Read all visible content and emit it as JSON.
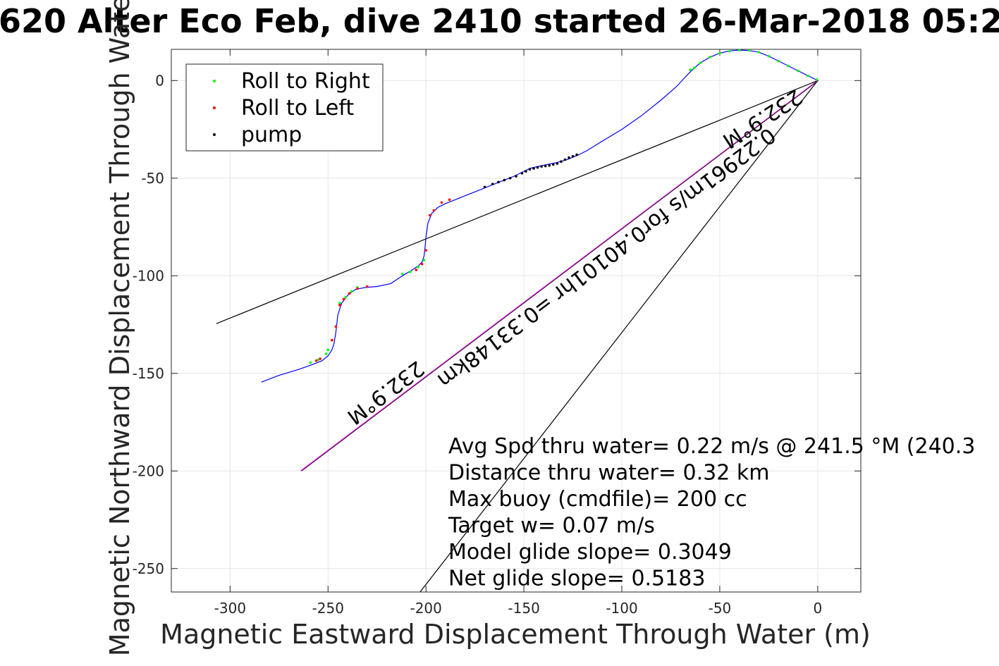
{
  "chart_data": {
    "type": "line",
    "title": "620 Alter Eco Feb, dive 2410 started 26-Mar-2018 05:2",
    "xlabel": "Magnetic Eastward Displacement Through Water (m)",
    "ylabel": "Magnetic Northward Displacement Through Wate(",
    "xlim": [
      -330,
      22
    ],
    "ylim": [
      -262,
      16
    ],
    "xticks": [
      -300,
      -250,
      -200,
      -150,
      -100,
      -50,
      0
    ],
    "yticks": [
      -250,
      -200,
      -150,
      -100,
      -50,
      0
    ],
    "x_tick_labels": [
      "-300",
      "-250",
      "-200",
      "-150",
      "-100",
      "-50",
      "0"
    ],
    "y_tick_labels": [
      "-250",
      "-200",
      "-150",
      "-100",
      "-50",
      "0"
    ],
    "grid": true,
    "legend_position": "top-left",
    "legend": [
      {
        "label": "Roll to Right",
        "color": "#00ff00"
      },
      {
        "label": "Roll to Left",
        "color": "#ff0000"
      },
      {
        "label": "pump",
        "color": "#000000"
      }
    ],
    "colors": {
      "track": "#0000ff",
      "magenta_line": "#ff00ff",
      "black_lines": "#000000",
      "grid": "#e6e6e6"
    },
    "track": {
      "x": [
        -284,
        -275,
        -265,
        -258,
        -253,
        -250,
        -248,
        -247,
        -246,
        -245,
        -243,
        -240,
        -236,
        -231,
        -225,
        -218,
        -212,
        -207,
        -204,
        -202,
        -201,
        -200.5,
        -200,
        -199,
        -197,
        -194,
        -190,
        -185,
        -180,
        -175,
        -170,
        -165,
        -160,
        -155,
        -150,
        -147,
        -143,
        -138,
        -133,
        -128,
        -122,
        -118,
        -110,
        -100,
        -90,
        -80,
        -72,
        -67,
        -64,
        -60,
        -55,
        -50,
        -45,
        -40,
        -35,
        -30,
        -25,
        -20,
        -15,
        -10,
        -5,
        0
      ],
      "y": [
        -154.5,
        -151,
        -148,
        -145.5,
        -143.5,
        -141,
        -138,
        -135,
        -129,
        -120,
        -114,
        -110,
        -107,
        -106,
        -105.5,
        -104,
        -100,
        -97,
        -95,
        -93,
        -90,
        -86,
        -80,
        -73,
        -68,
        -65,
        -63,
        -61,
        -59,
        -57,
        -55,
        -53,
        -51,
        -49,
        -46.5,
        -45,
        -44,
        -43,
        -42,
        -40.5,
        -38,
        -36,
        -31,
        -25,
        -18,
        -10,
        -3,
        2.5,
        5.5,
        9,
        12,
        14,
        15.2,
        15.6,
        15.4,
        14.5,
        12.5,
        10,
        7.5,
        5,
        2.5,
        0
      ]
    },
    "roll_right_points": {
      "x": [
        -259,
        -255,
        -251,
        -250,
        -248,
        -212,
        -208,
        -204,
        -201,
        -0.5,
        -5,
        -10,
        -15,
        -20,
        -25,
        -30,
        -35,
        -40,
        -45,
        -50,
        -55,
        -60,
        -63,
        -65,
        -235,
        -238,
        -241,
        -244
      ],
      "y": [
        -144.5,
        -143,
        -140,
        -138,
        -133,
        -99,
        -98,
        -95.5,
        -92,
        0.5,
        2.5,
        5,
        7.5,
        10,
        12.5,
        14.5,
        15.4,
        15.6,
        15,
        14,
        12,
        9,
        6.5,
        5.5,
        -106,
        -108,
        -111,
        -114
      ]
    },
    "roll_left_points": {
      "x": [
        -256,
        -254,
        -248,
        -246,
        -244,
        -242,
        -239,
        -235,
        -230,
        -205,
        -202,
        -200,
        -198,
        -196,
        -192,
        -188
      ],
      "y": [
        -143.5,
        -142.5,
        -133,
        -126,
        -115,
        -112,
        -109,
        -106.5,
        -105.5,
        -97,
        -94,
        -87,
        -69,
        -66.5,
        -62.5,
        -61
      ]
    },
    "pump_points": {
      "x": [
        -170,
        -166,
        -163,
        -160,
        -157,
        -154,
        -151,
        -149,
        -147,
        -145,
        -143,
        -141,
        -139,
        -137,
        -135,
        -133,
        -131,
        -129,
        -127,
        -125,
        -123
      ],
      "y": [
        -54.5,
        -53,
        -52,
        -51,
        -50,
        -49,
        -47.5,
        -46.5,
        -45.5,
        -45,
        -44.5,
        -44,
        -43.8,
        -43.5,
        -43,
        -42.5,
        -41.5,
        -40.5,
        -39.5,
        -38.8,
        -38
      ]
    },
    "black_line_1": {
      "x": [
        -307,
        0
      ],
      "y": [
        -124.5,
        0
      ]
    },
    "black_line_2": {
      "x": [
        -203,
        0
      ],
      "y": [
        -262,
        0
      ]
    },
    "magenta_line": {
      "x": [
        -264,
        0
      ],
      "y": [
        -200,
        0
      ]
    },
    "rotated_labels": {
      "heading_upper": "232.9°M",
      "speed_line": "0.22961m/s for0.40101hr =0.33148km",
      "heading_lower": "232.9°M"
    },
    "annotations": [
      "Avg Spd thru water=  0.22 m/s @ 241.5 °M (240.3",
      "Distance thru water=  0.32 km",
      "Max buoy (cmdfile)= 200 cc",
      "Target w= 0.07 m/s",
      "Model glide slope= 0.3049",
      "Net glide slope= 0.5183"
    ]
  }
}
